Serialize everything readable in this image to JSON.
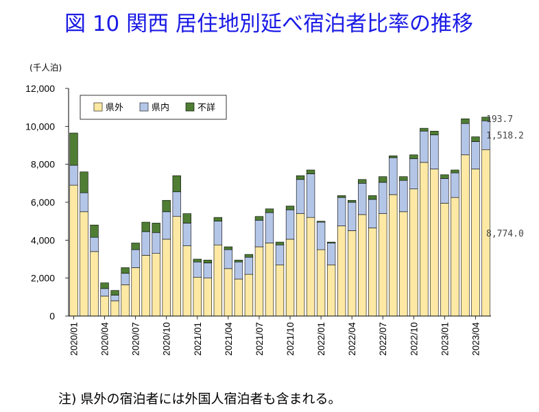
{
  "figure_title": "図 10  関西 居住地別延べ宿泊者比率の推移",
  "note": "注) 県外の宿泊者には外国人宿泊者も含まれる。",
  "colors": {
    "title": "#1a1ae6",
    "series": [
      "#fde9a4",
      "#b4c6e8",
      "#4e7d33"
    ],
    "stroke": "#000000",
    "grid": "#d9d9d9"
  },
  "chart_data": {
    "type": "bar",
    "stacked": true,
    "title": "",
    "ylabel": "(千人泊)",
    "xlabel": "",
    "ylim": [
      0,
      12000
    ],
    "yticks": [
      0,
      2000,
      4000,
      6000,
      8000,
      10000,
      12000
    ],
    "ytick_labels": [
      "0",
      "2,000",
      "4,000",
      "6,000",
      "8,000",
      "10,000",
      "12,000"
    ],
    "grid": false,
    "legend_position": "top-left",
    "categories": [
      "2020/01",
      "2020/02",
      "2020/03",
      "2020/04",
      "2020/05",
      "2020/06",
      "2020/07",
      "2020/08",
      "2020/09",
      "2020/10",
      "2020/11",
      "2020/12",
      "2021/01",
      "2021/02",
      "2021/03",
      "2021/04",
      "2021/05",
      "2021/06",
      "2021/07",
      "2021/08",
      "2021/09",
      "2021/10",
      "2021/11",
      "2021/12",
      "2022/01",
      "2022/02",
      "2022/03",
      "2022/04",
      "2022/05",
      "2022/06",
      "2022/07",
      "2022/08",
      "2022/09",
      "2022/10",
      "2022/11",
      "2022/12",
      "2023/01",
      "2023/02",
      "2023/03",
      "2023/04",
      "2023/05"
    ],
    "tick_labels": [
      "2020/01",
      "2020/04",
      "2020/07",
      "2020/10",
      "2021/01",
      "2021/04",
      "2021/07",
      "2021/10",
      "2022/01",
      "2022/04",
      "2022/07",
      "2022/10",
      "2023/01",
      "2023/04"
    ],
    "tick_categories": [
      0,
      3,
      6,
      9,
      12,
      15,
      18,
      21,
      24,
      27,
      30,
      33,
      36,
      39
    ],
    "series": [
      {
        "name": "県外",
        "values": [
          6900,
          5500,
          3400,
          1050,
          800,
          1650,
          2550,
          3200,
          3300,
          4050,
          5250,
          3700,
          2050,
          2000,
          3750,
          2500,
          1950,
          2200,
          3650,
          3850,
          2700,
          4050,
          5400,
          5200,
          3500,
          2700,
          4750,
          4500,
          5350,
          4650,
          5400,
          6400,
          5500,
          6700,
          8100,
          7750,
          5950,
          6250,
          8500,
          7750,
          8774.0
        ]
      },
      {
        "name": "県内",
        "values": [
          1050,
          1000,
          750,
          400,
          300,
          600,
          950,
          1250,
          1100,
          1450,
          1300,
          1200,
          800,
          800,
          1250,
          1000,
          900,
          900,
          1400,
          1600,
          1050,
          1550,
          1800,
          2300,
          1450,
          1150,
          1500,
          1500,
          1650,
          1500,
          1650,
          1950,
          1650,
          1600,
          1650,
          1800,
          1300,
          1300,
          1650,
          1450,
          1518.2
        ]
      },
      {
        "name": "不詳",
        "values": [
          1700,
          1100,
          650,
          300,
          250,
          300,
          350,
          500,
          500,
          600,
          850,
          500,
          150,
          150,
          200,
          150,
          100,
          150,
          200,
          200,
          150,
          200,
          200,
          200,
          50,
          50,
          100,
          100,
          200,
          200,
          300,
          100,
          200,
          200,
          150,
          200,
          200,
          150,
          250,
          250,
          193.7
        ]
      }
    ],
    "annotations": [
      "193.7",
      "1,518.2",
      "8,774.0"
    ]
  }
}
